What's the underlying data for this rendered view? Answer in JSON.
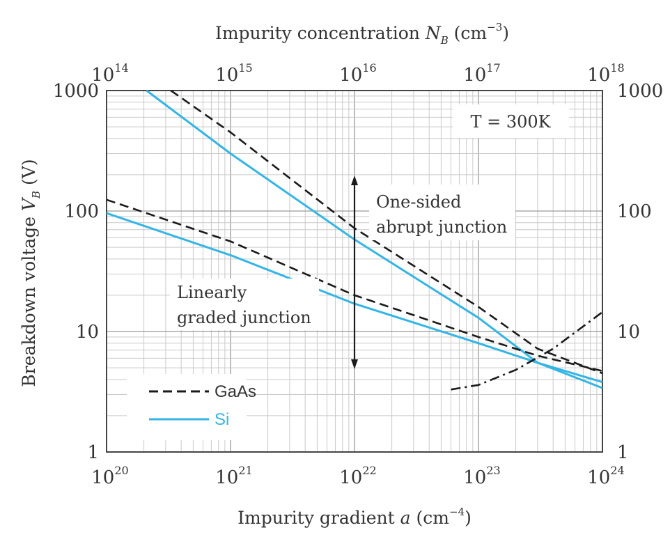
{
  "chart_data": {
    "type": "line",
    "title": "",
    "xlabel": {
      "main": "Impurity gradient ",
      "var": "a",
      "unit": " (cm",
      "exp": "−4",
      "close": ")"
    },
    "x2label": {
      "main": "Impurity concentration ",
      "var": "N",
      "sub": "B",
      "unit": " (cm",
      "exp": "−3",
      "close": ")"
    },
    "ylabel": {
      "main": "Breakdown voltage ",
      "var": "V",
      "sub": "B",
      "unit": " (V)"
    },
    "x_scale": "log",
    "y_scale": "log",
    "xlim": [
      1e+20,
      1e+24
    ],
    "x2lim": [
      100000000000000.0,
      1e+18
    ],
    "ylim": [
      1,
      1000
    ],
    "x_ticks": [
      {
        "base": "10",
        "exp": "20"
      },
      {
        "base": "10",
        "exp": "21"
      },
      {
        "base": "10",
        "exp": "22"
      },
      {
        "base": "10",
        "exp": "23"
      },
      {
        "base": "10",
        "exp": "24"
      }
    ],
    "x2_ticks": [
      {
        "base": "10",
        "exp": "14"
      },
      {
        "base": "10",
        "exp": "15"
      },
      {
        "base": "10",
        "exp": "16"
      },
      {
        "base": "10",
        "exp": "17"
      },
      {
        "base": "10",
        "exp": "18"
      }
    ],
    "y_ticks": [
      "1",
      "10",
      "100",
      "1000"
    ],
    "grid": true,
    "annotations": {
      "temperature": "T = 300K",
      "abrupt_line1": "One-sided",
      "abrupt_line2": "abrupt junction",
      "graded_line1": "Linearly",
      "graded_line2": "graded junction"
    },
    "legend": {
      "position": "bottom-left",
      "entries": [
        {
          "label": "GaAs",
          "style": "dashed",
          "color": "#1a1a1a"
        },
        {
          "label": "Si",
          "style": "solid",
          "color": "#33b5e5"
        }
      ]
    },
    "series": [
      {
        "legend": "Si",
        "family": "abrupt",
        "style": "solid",
        "color": "#33b5e5",
        "axis": "top",
        "points": [
          [
            210000000000000.0,
            1000
          ],
          [
            1000000000000000.0,
            300
          ],
          [
            1e+16,
            58
          ],
          [
            1e+17,
            13
          ],
          [
            3e+17,
            5.5
          ],
          [
            1e+18,
            3.4
          ]
        ]
      },
      {
        "legend": "GaAs",
        "family": "abrupt",
        "style": "dashed",
        "color": "#1a1a1a",
        "axis": "top",
        "points": [
          [
            330000000000000.0,
            1000
          ],
          [
            1000000000000000.0,
            450
          ],
          [
            1e+16,
            72
          ],
          [
            1e+17,
            16
          ],
          [
            3e+17,
            7.2
          ],
          [
            1e+18,
            4.5
          ]
        ]
      },
      {
        "legend": "Si",
        "family": "graded",
        "style": "solid",
        "color": "#33b5e5",
        "axis": "bottom",
        "points": [
          [
            1e+20,
            96
          ],
          [
            1e+21,
            43
          ],
          [
            1e+22,
            17
          ],
          [
            1e+23,
            8
          ],
          [
            3e+23,
            5.5
          ],
          [
            1e+24,
            3.8
          ]
        ]
      },
      {
        "legend": "GaAs",
        "family": "graded",
        "style": "dashed",
        "color": "#1a1a1a",
        "axis": "bottom",
        "points": [
          [
            1e+20,
            124
          ],
          [
            1e+21,
            56
          ],
          [
            1e+22,
            20
          ],
          [
            1e+23,
            9
          ],
          [
            3e+23,
            6.3
          ],
          [
            1e+24,
            4.7
          ]
        ]
      },
      {
        "family": "limit",
        "style": "dashdot",
        "color": "#1a1a1a",
        "axis": "bottom",
        "points": [
          [
            6e+22,
            3.3
          ],
          [
            1e+23,
            3.6
          ],
          [
            2e+23,
            4.8
          ],
          [
            4e+23,
            7.2
          ],
          [
            1e+24,
            14.5
          ]
        ]
      }
    ]
  }
}
